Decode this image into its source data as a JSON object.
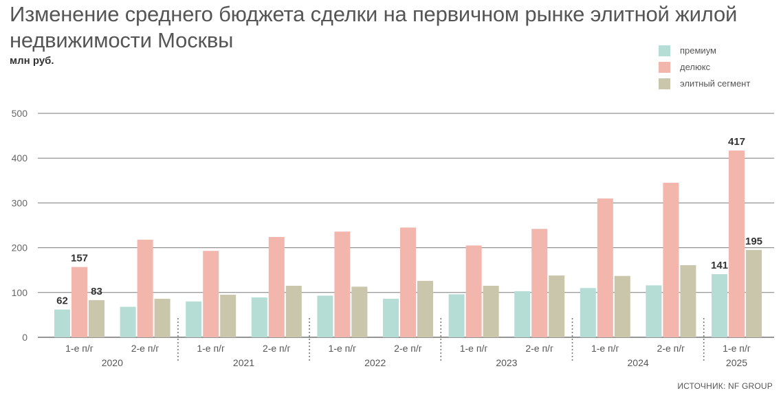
{
  "title": "Изменение среднего бюджета сделки на первичном рынке элитной жилой недвижимости Москвы",
  "subtitle": "млн руб.",
  "source": "ИСТОЧНИК: NF GROUP",
  "legend": [
    {
      "label": "премиум",
      "color": "#b5ddd6"
    },
    {
      "label": "делюкс",
      "color": "#f2b6ad"
    },
    {
      "label": "элитный сегмент",
      "color": "#c9c6ab"
    }
  ],
  "chart_data": {
    "type": "bar",
    "ylim": [
      0,
      500
    ],
    "yticks": [
      0,
      100,
      200,
      300,
      400,
      500
    ],
    "grid": true,
    "legend_position": "top-right",
    "groups": [
      {
        "year": "2020",
        "periods": [
          "1-е п/г",
          "2-е п/г"
        ]
      },
      {
        "year": "2021",
        "periods": [
          "1-е п/г",
          "2-е п/г"
        ]
      },
      {
        "year": "2022",
        "periods": [
          "1-е п/г",
          "2-е п/г"
        ]
      },
      {
        "year": "2023",
        "periods": [
          "1-е п/г",
          "2-е п/г"
        ]
      },
      {
        "year": "2024",
        "periods": [
          "1-е п/г",
          "2-е п/г"
        ]
      },
      {
        "year": "2025",
        "periods": [
          "1-е п/г"
        ]
      }
    ],
    "categories": [
      "1-е п/г 2020",
      "2-е п/г 2020",
      "1-е п/г 2021",
      "2-е п/г 2021",
      "1-е п/г 2022",
      "2-е п/г 2022",
      "1-е п/г 2023",
      "2-е п/г 2023",
      "1-е п/г 2024",
      "2-е п/г 2024",
      "1-е п/г 2025"
    ],
    "series": [
      {
        "name": "премиум",
        "color": "#b5ddd6",
        "values": [
          62,
          68,
          80,
          89,
          93,
          86,
          96,
          103,
          110,
          116,
          141
        ]
      },
      {
        "name": "делюкс",
        "color": "#f2b6ad",
        "values": [
          157,
          218,
          193,
          224,
          236,
          245,
          205,
          242,
          310,
          345,
          417
        ]
      },
      {
        "name": "элитный сегмент",
        "color": "#c9c6ab",
        "values": [
          83,
          86,
          95,
          115,
          113,
          126,
          115,
          138,
          137,
          161,
          195
        ]
      }
    ],
    "data_labels": [
      {
        "category": 0,
        "series": 0,
        "text": "62"
      },
      {
        "category": 0,
        "series": 1,
        "text": "157"
      },
      {
        "category": 0,
        "series": 2,
        "text": "83"
      },
      {
        "category": 10,
        "series": 0,
        "text": "141"
      },
      {
        "category": 10,
        "series": 1,
        "text": "417"
      },
      {
        "category": 10,
        "series": 2,
        "text": "195"
      }
    ]
  }
}
